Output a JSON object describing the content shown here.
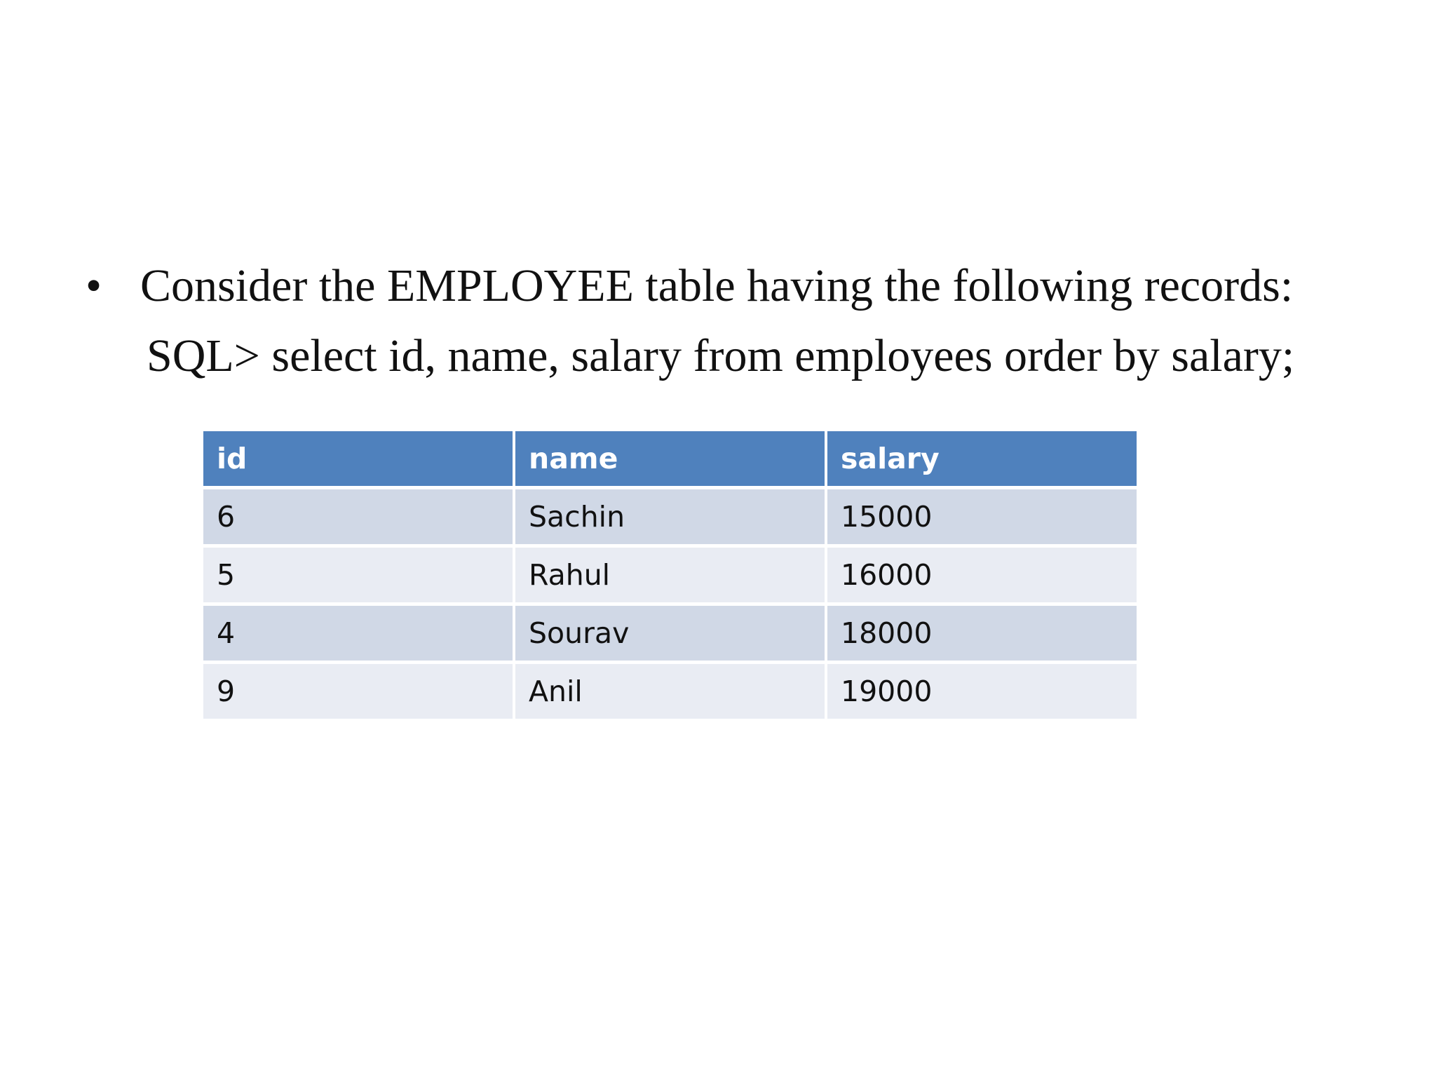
{
  "slide": {
    "bullet": "•",
    "line1": "Consider the EMPLOYEE table having the following records:",
    "line2": "SQL> select id, name, salary from employees order by salary;"
  },
  "table": {
    "headers": [
      "id",
      "name",
      "salary"
    ],
    "rows": [
      [
        "6",
        "Sachin",
        "15000"
      ],
      [
        "5",
        "Rahul",
        "16000"
      ],
      [
        "4",
        "Sourav",
        "18000"
      ],
      [
        "9",
        "Anil",
        "19000"
      ]
    ]
  },
  "colors": {
    "header": "#4f81bd",
    "row_odd": "#d0d8e6",
    "row_even": "#e9ecf3"
  }
}
